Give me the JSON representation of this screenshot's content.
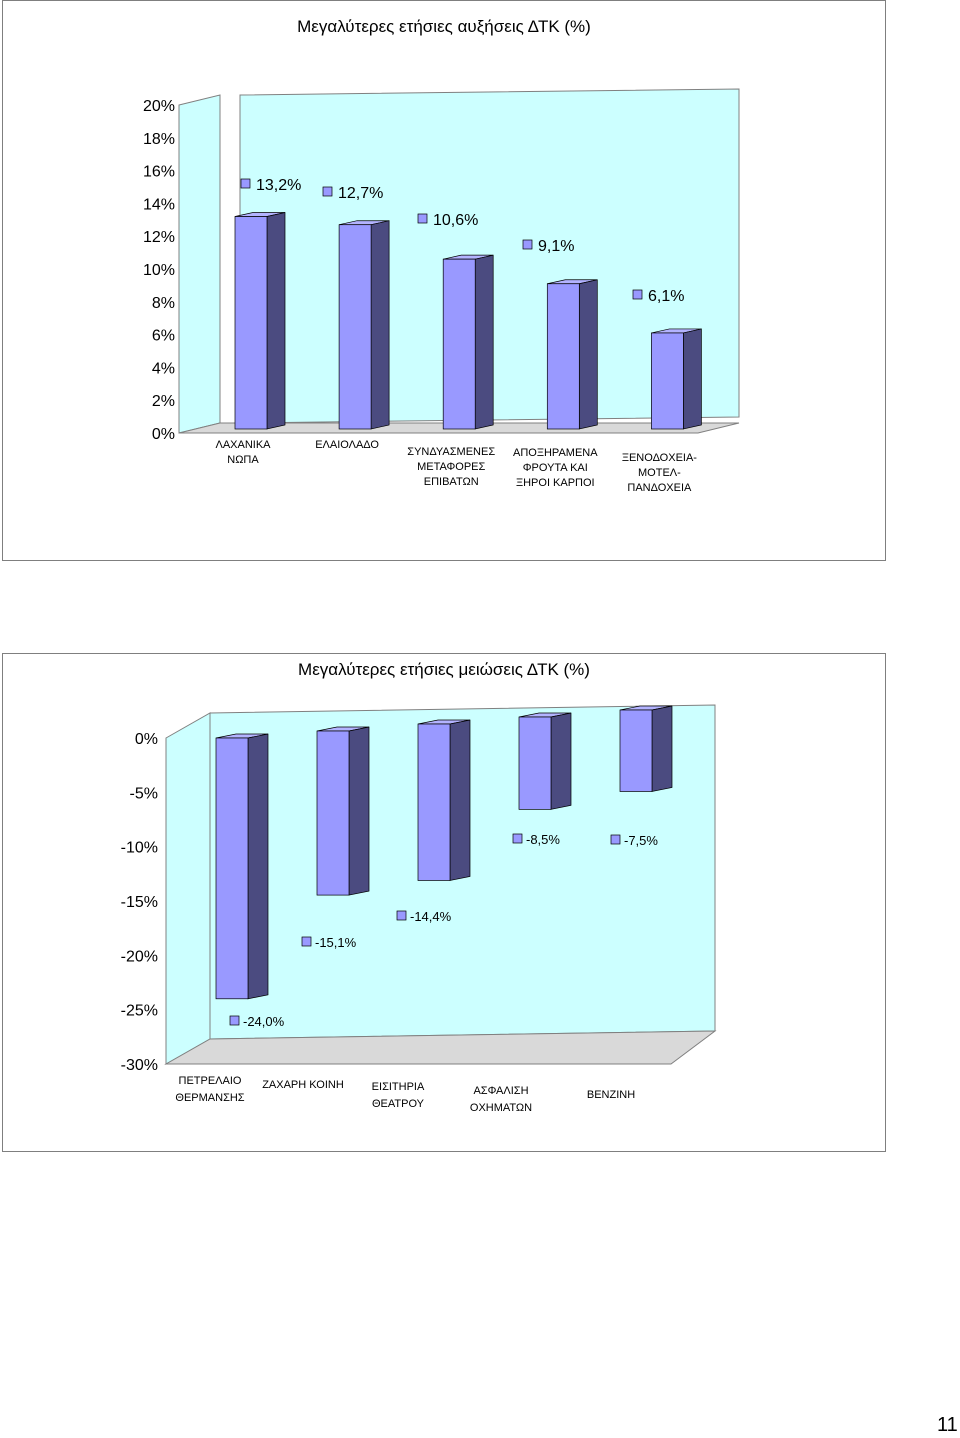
{
  "colors": {
    "wall": "#ccffff",
    "floor": "#d9d9d9",
    "bar_front": "#9999ff",
    "bar_side": "#4b4b80",
    "bar_top": "#b3b3ff",
    "frame": "#808080"
  },
  "page_number": "11",
  "chart_data": [
    {
      "type": "bar",
      "title": "Μεγαλύτερες ετήσιες αυξήσεις ΔΤΚ (%)",
      "categories": [
        [
          "ΛΑΧΑΝΙΚΑ",
          "ΝΩΠΑ"
        ],
        [
          "ΕΛΑΙΟΛΑΔΟ"
        ],
        [
          "ΣΥΝΔΥΑΣΜΕΝΕΣ",
          "ΜΕΤΑΦΟΡΕΣ",
          "ΕΠΙΒΑΤΩΝ"
        ],
        [
          "ΑΠΟΞΗΡΑΜΕΝΑ",
          "ΦΡΟΥΤΑ ΚΑΙ",
          "ΞΗΡΟΙ ΚΑΡΠΟΙ"
        ],
        [
          "ΞΕΝΟΔΟΧΕΙΑ-",
          "ΜΟΤΕΛ-",
          "ΠΑΝΔΟΧΕΙΑ"
        ]
      ],
      "values": [
        13.2,
        12.7,
        10.6,
        9.1,
        6.1
      ],
      "data_labels": [
        "13,2%",
        "12,7%",
        "10,6%",
        "9,1%",
        "6,1%"
      ],
      "y_ticks": [
        "0%",
        "2%",
        "4%",
        "6%",
        "8%",
        "10%",
        "12%",
        "14%",
        "16%",
        "18%",
        "20%"
      ],
      "ylim": [
        0,
        20
      ],
      "xlabel": "",
      "ylabel": ""
    },
    {
      "type": "bar",
      "title": "Μεγαλύτερες ετήσιες μειώσεις ΔΤΚ (%)",
      "categories": [
        [
          "ΠΕΤΡΕΛΑΙΟ",
          "ΘΕΡΜΑΝΣΗΣ"
        ],
        [
          "ΖΑΧΑΡΗ ΚΟΙΝΗ"
        ],
        [
          "ΕΙΣΙΤΗΡΙΑ",
          "ΘΕΑΤΡΟΥ"
        ],
        [
          "ΑΣΦΑΛΙΣΗ",
          "ΟΧΗΜΑΤΩΝ"
        ],
        [
          "ΒΕΝΖΙΝΗ"
        ]
      ],
      "values": [
        -24.0,
        -15.1,
        -14.4,
        -8.5,
        -7.5
      ],
      "data_labels": [
        "-24,0%",
        "-15,1%",
        "-14,4%",
        "-8,5%",
        "-7,5%"
      ],
      "y_ticks": [
        "0%",
        "-5%",
        "-10%",
        "-15%",
        "-20%",
        "-25%",
        "-30%"
      ],
      "ylim": [
        -30,
        0
      ],
      "xlabel": "",
      "ylabel": ""
    }
  ]
}
